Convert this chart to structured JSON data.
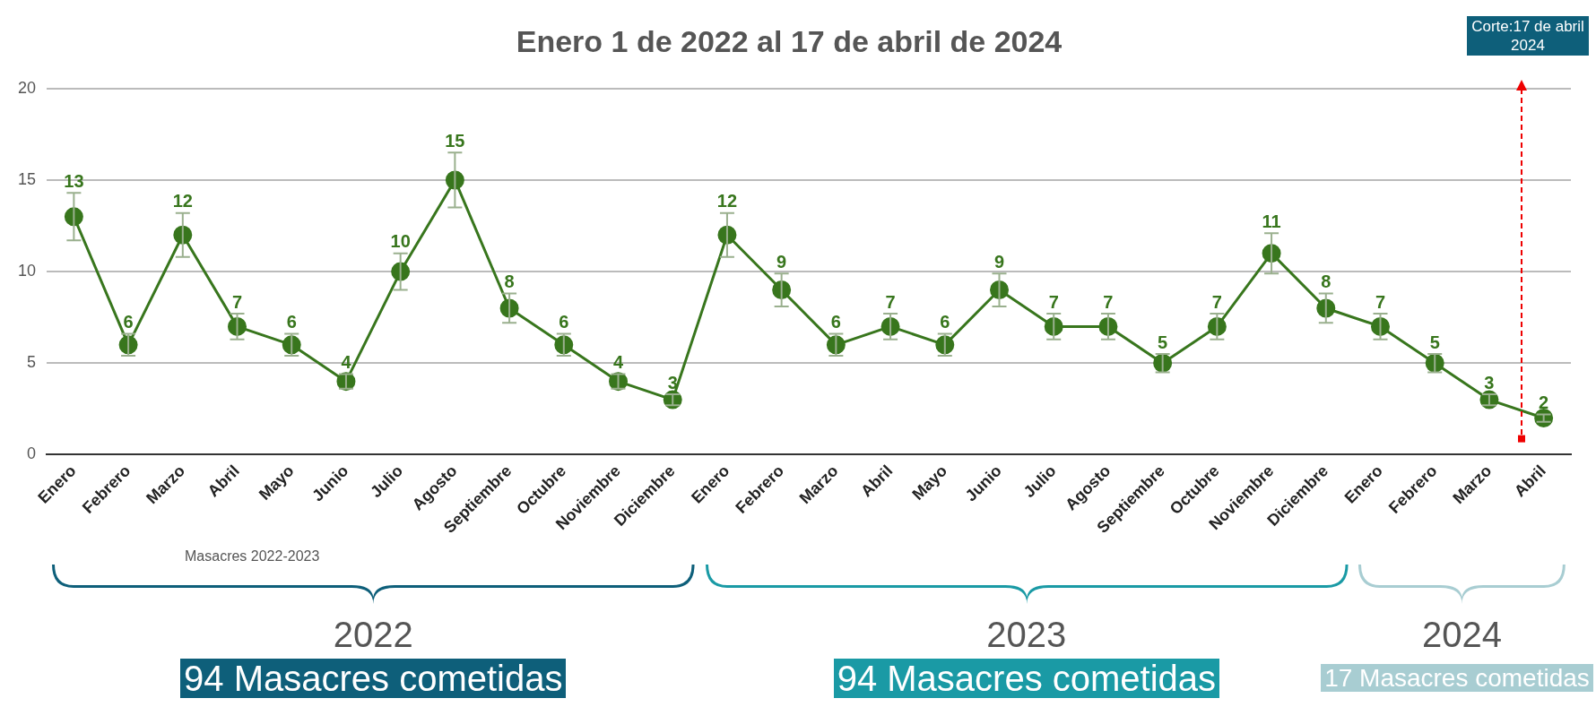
{
  "chart_data": {
    "type": "line",
    "title": "Enero 1 de 2022 al 17 de abril de 2024",
    "xlabel": "Masacres 2022-2023",
    "categories": [
      "Enero",
      "Febrero",
      "Marzo",
      "Abril",
      "Mayo",
      "Junio",
      "Julio",
      "Agosto",
      "Septiembre",
      "Octubre",
      "Noviembre",
      "Diciembre",
      "Enero",
      "Febrero",
      "Marzo",
      "Abril",
      "Mayo",
      "Junio",
      "Julio",
      "Agosto",
      "Septiembre",
      "Octubre",
      "Noviembre",
      "Diciembre",
      "Enero",
      "Febrero",
      "Marzo",
      "Abril"
    ],
    "series": [
      {
        "color": "#38761d",
        "values": [
          13,
          6,
          12,
          7,
          6,
          4,
          10,
          15,
          8,
          6,
          4,
          3,
          12,
          9,
          6,
          7,
          6,
          9,
          7,
          7,
          5,
          7,
          11,
          8,
          7,
          5,
          3,
          2
        ],
        "errors": [
          1.3,
          0.6,
          1.2,
          0.7,
          0.6,
          0.4,
          1,
          1.5,
          0.8,
          0.6,
          0.4,
          0.3,
          1.2,
          0.9,
          0.6,
          0.7,
          0.6,
          0.9,
          0.7,
          0.7,
          0.5,
          0.7,
          1.1,
          0.8,
          0.7,
          0.5,
          0.3,
          0.2
        ]
      }
    ],
    "ylim": [
      0,
      20
    ],
    "yticks": [
      0,
      5,
      10,
      15,
      20
    ],
    "grid": "y",
    "legend": false,
    "marker": "circle",
    "line_style": "solid",
    "data_labels": true,
    "annotations": [
      "Corte:17 de abril 2024",
      "2022",
      "94 Masacres cometidas",
      "2023",
      "94 Masacres cometidas",
      "2024",
      "17 Masacres cometidas"
    ]
  }
}
